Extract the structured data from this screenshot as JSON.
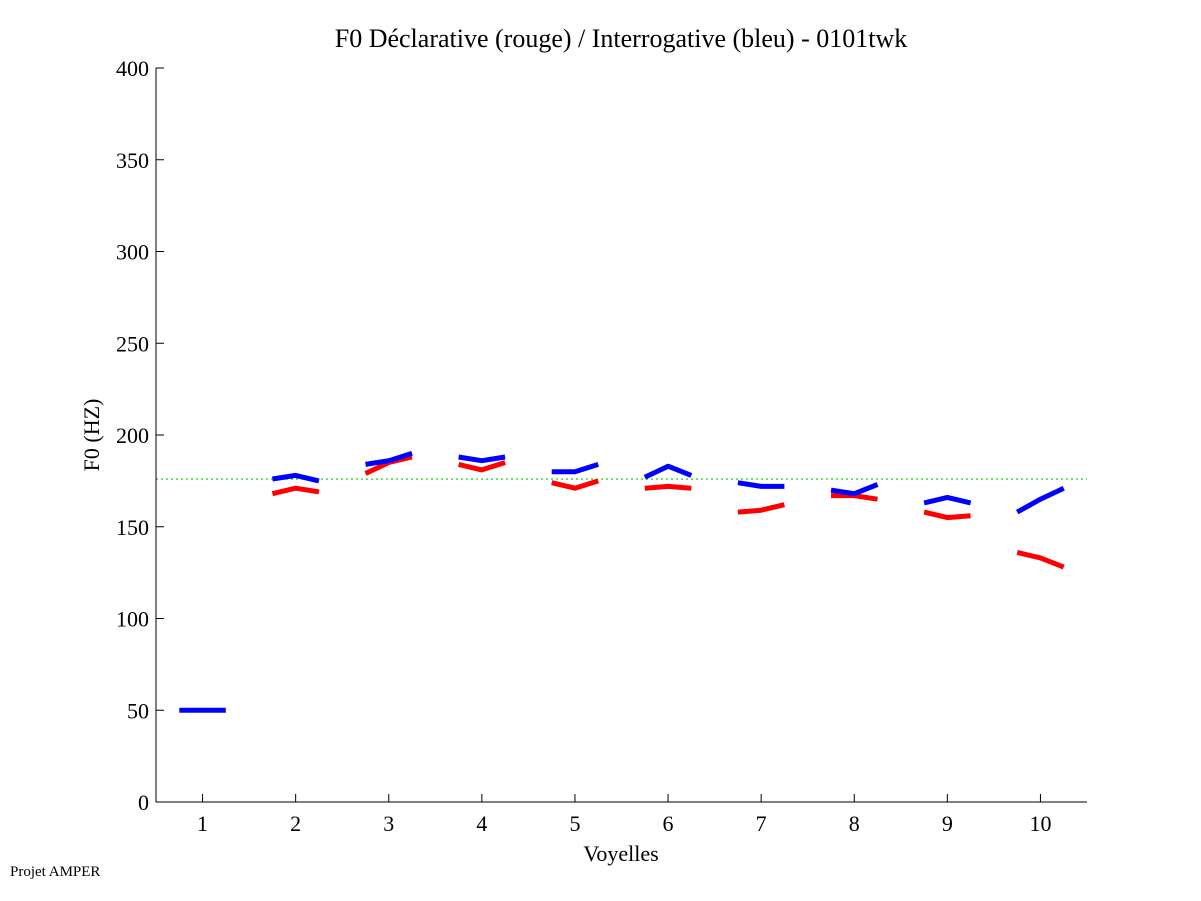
{
  "chart_data": {
    "type": "line",
    "title": "F0 Déclarative (rouge) / Interrogative (bleu) - 0101twk",
    "xlabel": "Voyelles",
    "ylabel": "F0 (HZ)",
    "xlim": [
      0.5,
      10.5
    ],
    "ylim": [
      0,
      400
    ],
    "xticks": [
      1,
      2,
      3,
      4,
      5,
      6,
      7,
      8,
      9,
      10
    ],
    "yticks": [
      0,
      50,
      100,
      150,
      200,
      250,
      300,
      350,
      400
    ],
    "reference_line": {
      "value": 176,
      "color": "#00cc00",
      "style": "dotted"
    },
    "series": [
      {
        "name": "Déclarative",
        "color": "#ff0000",
        "segments": [
          {
            "vowel": 2,
            "x": [
              1.75,
              2.0,
              2.25
            ],
            "y": [
              168,
              171,
              169
            ]
          },
          {
            "vowel": 3,
            "x": [
              2.75,
              3.0,
              3.25
            ],
            "y": [
              179,
              185,
              188
            ]
          },
          {
            "vowel": 4,
            "x": [
              3.75,
              4.0,
              4.25
            ],
            "y": [
              184,
              181,
              185
            ]
          },
          {
            "vowel": 5,
            "x": [
              4.75,
              5.0,
              5.25
            ],
            "y": [
              174,
              171,
              175
            ]
          },
          {
            "vowel": 6,
            "x": [
              5.75,
              6.0,
              6.25
            ],
            "y": [
              171,
              172,
              171
            ]
          },
          {
            "vowel": 7,
            "x": [
              6.75,
              7.0,
              7.25
            ],
            "y": [
              158,
              159,
              162
            ]
          },
          {
            "vowel": 8,
            "x": [
              7.75,
              8.0,
              8.25
            ],
            "y": [
              167,
              167,
              165
            ]
          },
          {
            "vowel": 9,
            "x": [
              8.75,
              9.0,
              9.25
            ],
            "y": [
              158,
              155,
              156
            ]
          },
          {
            "vowel": 10,
            "x": [
              9.75,
              10.0,
              10.25
            ],
            "y": [
              136,
              133,
              128
            ]
          }
        ]
      },
      {
        "name": "Interrogative",
        "color": "#0000ff",
        "segments": [
          {
            "vowel": 1,
            "x": [
              0.75,
              1.0,
              1.25
            ],
            "y": [
              50,
              50,
              50
            ]
          },
          {
            "vowel": 2,
            "x": [
              1.75,
              2.0,
              2.25
            ],
            "y": [
              176,
              178,
              175
            ]
          },
          {
            "vowel": 3,
            "x": [
              2.75,
              3.0,
              3.25
            ],
            "y": [
              184,
              186,
              190
            ]
          },
          {
            "vowel": 4,
            "x": [
              3.75,
              4.0,
              4.25
            ],
            "y": [
              188,
              186,
              188
            ]
          },
          {
            "vowel": 5,
            "x": [
              4.75,
              5.0,
              5.25
            ],
            "y": [
              180,
              180,
              184
            ]
          },
          {
            "vowel": 6,
            "x": [
              5.75,
              6.0,
              6.25
            ],
            "y": [
              177,
              183,
              178
            ]
          },
          {
            "vowel": 7,
            "x": [
              6.75,
              7.0,
              7.25
            ],
            "y": [
              174,
              172,
              172
            ]
          },
          {
            "vowel": 8,
            "x": [
              7.75,
              8.0,
              8.25
            ],
            "y": [
              170,
              168,
              173
            ]
          },
          {
            "vowel": 9,
            "x": [
              8.75,
              9.0,
              9.25
            ],
            "y": [
              163,
              166,
              163
            ]
          },
          {
            "vowel": 10,
            "x": [
              9.75,
              10.0,
              10.25
            ],
            "y": [
              158,
              165,
              171
            ]
          }
        ]
      }
    ]
  },
  "footer": {
    "label": "Projet AMPER"
  }
}
